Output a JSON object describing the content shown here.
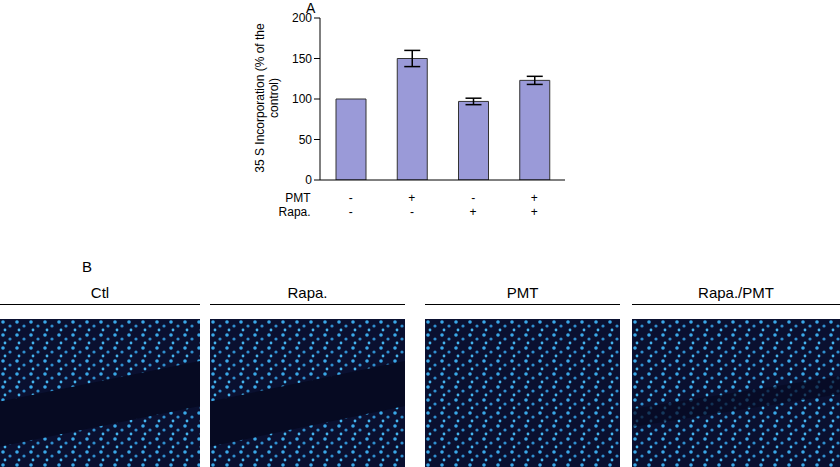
{
  "chart_data": {
    "type": "bar",
    "panel_label": "A",
    "ylabel": "35 S Incorporation (% of the control)",
    "categories": [
      null,
      null,
      null,
      null
    ],
    "values": [
      100,
      150,
      97,
      123
    ],
    "errors": [
      0,
      10,
      4,
      5
    ],
    "color": "#9a9ad8",
    "ylim": [
      0,
      200
    ],
    "yticks": [
      0,
      50,
      100,
      150,
      200
    ],
    "grid": false,
    "x_table": {
      "rows": [
        {
          "label": "PMT",
          "marks": [
            "-",
            "+",
            "-",
            "+"
          ]
        },
        {
          "label": "Rapa.",
          "marks": [
            "-",
            "-",
            "+",
            "+"
          ]
        }
      ]
    }
  },
  "figure_b": {
    "panel_label": "B",
    "images": [
      "Ctl",
      "Rapa.",
      "PMT",
      "Rapa./PMT"
    ]
  }
}
